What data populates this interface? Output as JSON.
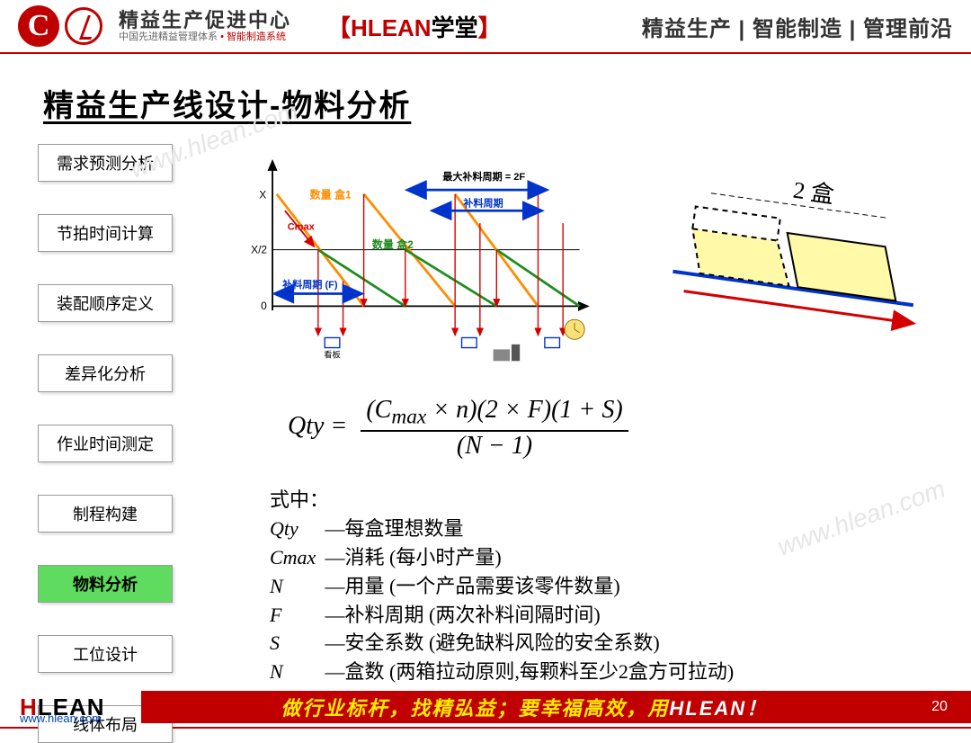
{
  "header": {
    "logo_line1": "精益生产促进中心",
    "logo_line2a": "中国先进精益管理体系",
    "logo_line2b": "智能制造系统",
    "tag_bracket_l": "【",
    "tag_red": "HLEAN",
    "tag_black": "学堂",
    "tag_bracket_r": "】",
    "right": "精益生产 | 智能制造 | 管理前沿"
  },
  "title": "精益生产线设计-物料分析",
  "sidebar": {
    "items": [
      "需求预测分析",
      "节拍时间计算",
      "装配顺序定义",
      "差异化分析",
      "作业时间测定",
      "制程构建",
      "物料分析",
      "工位设计",
      "线体布局"
    ],
    "active_index": 6
  },
  "chart": {
    "y_top_label": "X",
    "y_mid_label": "X/2",
    "y_zero_label": "0",
    "box1_label": "数量 盒1",
    "cmax_label": "Cmax",
    "box2_label": "数量 盒2",
    "f_label": "补料周期 (F)",
    "top_label_1": "最大补料周期 = 2F",
    "top_label_2": "补料周期",
    "kanban_label": "看板",
    "colors": {
      "axis": "#000000",
      "orange": "#ff8c00",
      "green": "#1e8c1e",
      "red": "#d40000",
      "blue": "#0033cc",
      "grid": "#000000"
    }
  },
  "boxillu": {
    "label": "2 盒",
    "box_fill": "#fff9a8",
    "box_dash": "#000000",
    "blue": "#0033cc",
    "red": "#d40000"
  },
  "formula": {
    "lhs": "Qty =",
    "num": "(C<sub>max</sub> × n)(2 × F)(1 + S)",
    "den": "(N − 1)"
  },
  "defs": {
    "heading": "式中：",
    "rows": [
      {
        "sym": "Qty",
        "text": "—每盒理想数量"
      },
      {
        "sym": "Cmax",
        "text": "—消耗 (每小时产量)"
      },
      {
        "sym": "N",
        "text": "—用量 (一个产品需要该零件数量)"
      },
      {
        "sym": "F",
        "text": "—补料周期 (两次补料间隔时间)"
      },
      {
        "sym": "S",
        "text": "—安全系数 (避免缺料风险的安全系数)"
      },
      {
        "sym": "N",
        "text": "—盒数 (两箱拉动原则,每颗料至少2盒方可拉动)"
      }
    ]
  },
  "footer": {
    "brand": "HLEAN",
    "url": "www.hlean.com",
    "slogan_a": "做行业标杆，找精弘益；要幸福高效，用",
    "slogan_b": "HLEAN！",
    "page": "20"
  },
  "watermark": "www.hlean.com"
}
